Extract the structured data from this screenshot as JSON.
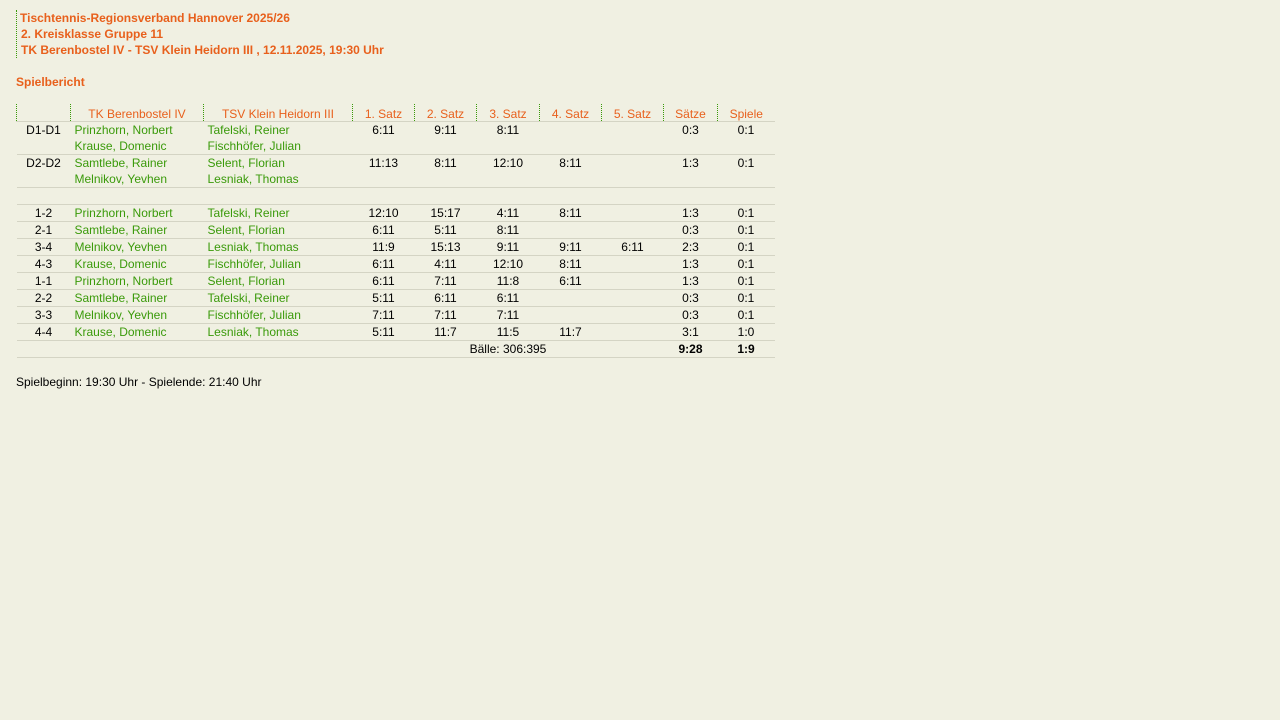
{
  "header": {
    "line1": "Tischtennis-Regionsverband Hannover 2025/26",
    "line2": "2. Kreisklasse Gruppe 11",
    "line3": "TK Berenbostel IV - TSV Klein Heidorn III , 12.11.2025, 19:30 Uhr"
  },
  "report_title": "Spielbericht",
  "columns": [
    "",
    "TK Berenbostel IV",
    "TSV Klein Heidorn III",
    "1. Satz",
    "2. Satz",
    "3. Satz",
    "4. Satz",
    "5. Satz",
    "Sätze",
    "Spiele"
  ],
  "doubles": [
    {
      "pos": "D1-D1",
      "home": [
        "Prinzhorn, Norbert",
        "Krause, Domenic"
      ],
      "away": [
        "Tafelski, Reiner",
        "Fischhöfer, Julian"
      ],
      "sets": [
        "6:11",
        "9:11",
        "8:11",
        "",
        ""
      ],
      "saetze": "0:3",
      "spiele": "0:1"
    },
    {
      "pos": "D2-D2",
      "home": [
        "Samtlebe, Rainer",
        "Melnikov, Yevhen"
      ],
      "away": [
        "Selent, Florian",
        "Lesniak, Thomas"
      ],
      "sets": [
        "11:13",
        "8:11",
        "12:10",
        "8:11",
        ""
      ],
      "saetze": "1:3",
      "spiele": "0:1"
    }
  ],
  "singles": [
    {
      "pos": "1-2",
      "home": "Prinzhorn, Norbert",
      "away": "Tafelski, Reiner",
      "sets": [
        "12:10",
        "15:17",
        "4:11",
        "8:11",
        ""
      ],
      "saetze": "1:3",
      "spiele": "0:1"
    },
    {
      "pos": "2-1",
      "home": "Samtlebe, Rainer",
      "away": "Selent, Florian",
      "sets": [
        "6:11",
        "5:11",
        "8:11",
        "",
        ""
      ],
      "saetze": "0:3",
      "spiele": "0:1"
    },
    {
      "pos": "3-4",
      "home": "Melnikov, Yevhen",
      "away": "Lesniak, Thomas",
      "sets": [
        "11:9",
        "15:13",
        "9:11",
        "9:11",
        "6:11"
      ],
      "saetze": "2:3",
      "spiele": "0:1"
    },
    {
      "pos": "4-3",
      "home": "Krause, Domenic",
      "away": "Fischhöfer, Julian",
      "sets": [
        "6:11",
        "4:11",
        "12:10",
        "8:11",
        ""
      ],
      "saetze": "1:3",
      "spiele": "0:1"
    },
    {
      "pos": "1-1",
      "home": "Prinzhorn, Norbert",
      "away": "Selent, Florian",
      "sets": [
        "6:11",
        "7:11",
        "11:8",
        "6:11",
        ""
      ],
      "saetze": "1:3",
      "spiele": "0:1"
    },
    {
      "pos": "2-2",
      "home": "Samtlebe, Rainer",
      "away": "Tafelski, Reiner",
      "sets": [
        "5:11",
        "6:11",
        "6:11",
        "",
        ""
      ],
      "saetze": "0:3",
      "spiele": "0:1"
    },
    {
      "pos": "3-3",
      "home": "Melnikov, Yevhen",
      "away": "Fischhöfer, Julian",
      "sets": [
        "7:11",
        "7:11",
        "7:11",
        "",
        ""
      ],
      "saetze": "0:3",
      "spiele": "0:1"
    },
    {
      "pos": "4-4",
      "home": "Krause, Domenic",
      "away": "Lesniak, Thomas",
      "sets": [
        "5:11",
        "11:7",
        "11:5",
        "11:7",
        ""
      ],
      "saetze": "3:1",
      "spiele": "1:0"
    }
  ],
  "totals": {
    "balls": "Bälle: 306:395",
    "saetze": "9:28",
    "spiele": "1:9"
  },
  "footer": "Spielbeginn: 19:30 Uhr - Spielende: 21:40 Uhr",
  "colors": {
    "accent": "#e8601c",
    "player": "#3a9a0a",
    "background": "#f0f0e2"
  }
}
